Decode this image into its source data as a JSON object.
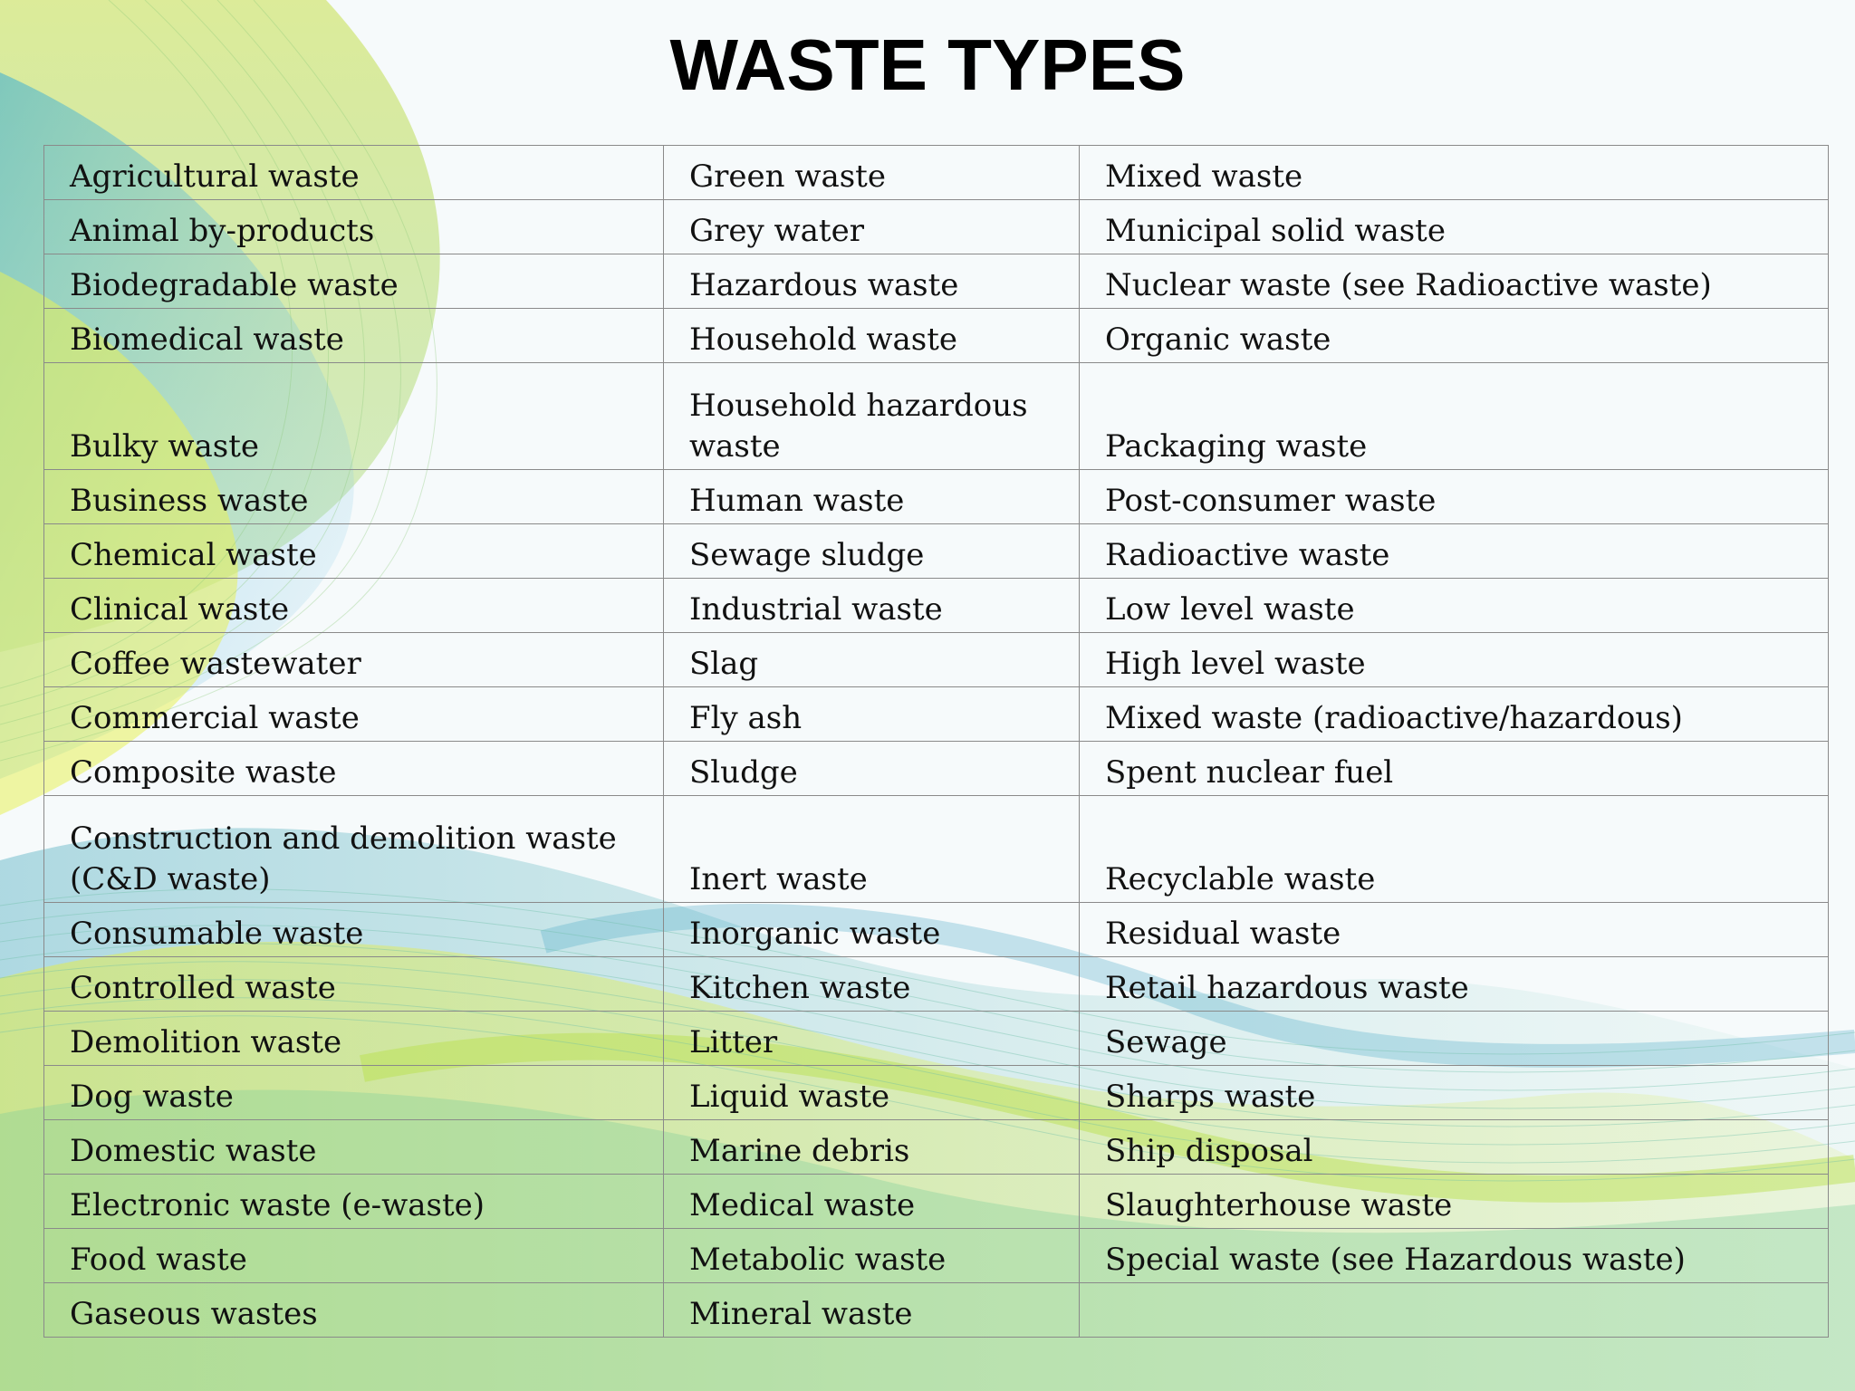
{
  "title": "WASTE TYPES",
  "columns": [
    [
      "Agricultural waste",
      "Animal by-products",
      "Biodegradable waste",
      "Biomedical waste",
      "Bulky waste",
      "Business waste",
      "Chemical waste",
      "Clinical waste",
      "Coffee wastewater",
      "Commercial waste",
      "Composite waste",
      "Construction and demolition waste (C&D waste)",
      "Consumable waste",
      "Controlled waste",
      "Demolition waste",
      "Dog waste",
      "Domestic waste",
      "Electronic waste (e-waste)",
      "Food waste",
      "Gaseous wastes"
    ],
    [
      "Green waste",
      "Grey water",
      "Hazardous waste",
      "Household waste",
      "Household hazardous waste",
      "Human waste",
      "Sewage sludge",
      "Industrial waste",
      "Slag",
      "Fly ash",
      "Sludge",
      "Inert waste",
      "Inorganic waste",
      "Kitchen waste",
      "Litter",
      "Liquid waste",
      "Marine debris",
      "Medical waste",
      "Metabolic waste",
      "Mineral waste"
    ],
    [
      "Mixed waste",
      "Municipal solid waste",
      "Nuclear waste (see Radioactive waste)",
      "Organic waste",
      "Packaging waste",
      "Post-consumer waste",
      "Radioactive waste",
      "Low level waste",
      "High level waste",
      "Mixed waste (radioactive/hazardous)",
      "Spent nuclear fuel",
      "Recyclable waste",
      "Residual waste",
      "Retail hazardous waste",
      "Sewage",
      "Sharps waste",
      "Ship disposal",
      "Slaughterhouse waste",
      "Special waste (see Hazardous waste)",
      ""
    ]
  ]
}
